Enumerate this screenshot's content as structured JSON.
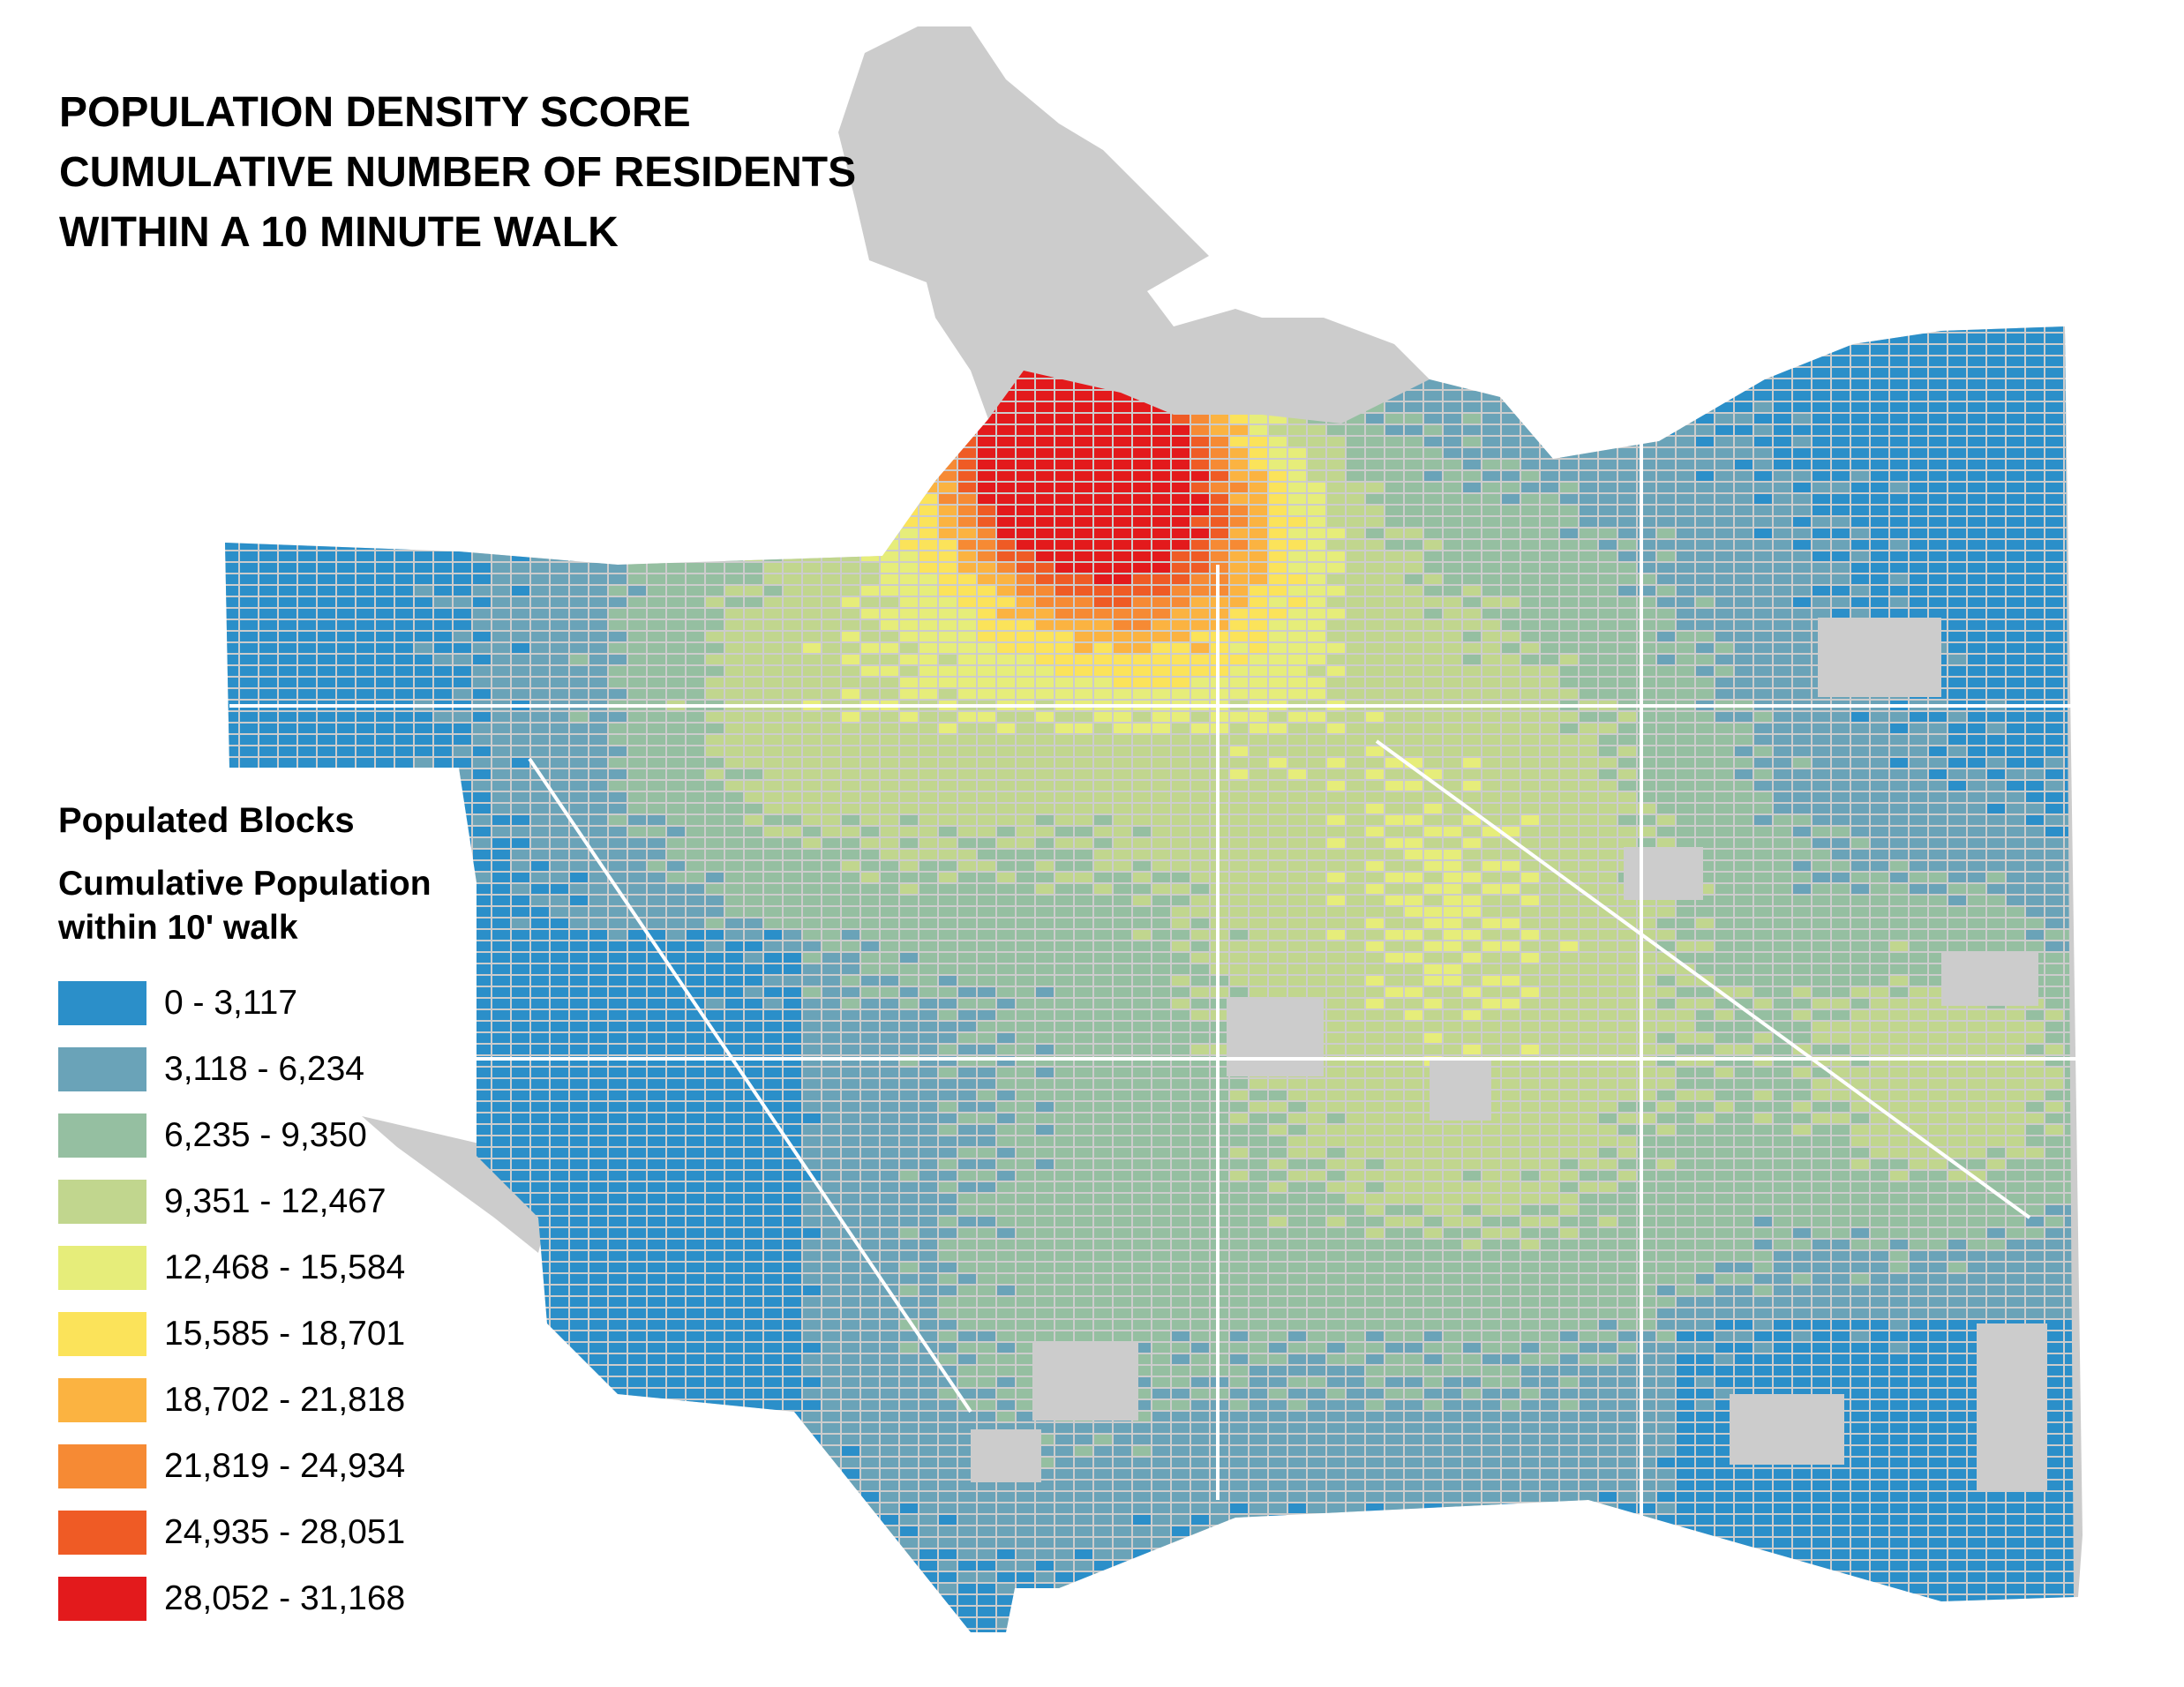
{
  "title": {
    "lines": [
      "POPULATION DENSITY SCORE",
      "CUMULATIVE NUMBER OF RESIDENTS",
      "WITHIN A 10 MINUTE WALK"
    ]
  },
  "legend": {
    "heading": "Populated Blocks",
    "subheading_line1": "Cumulative Population",
    "subheading_line2": "within 10' walk",
    "classes": [
      {
        "label": "0 - 3,117",
        "color": "#2b8fc9"
      },
      {
        "label": "3,118 - 6,234",
        "color": "#6aa3b8"
      },
      {
        "label": "6,235 - 9,350",
        "color": "#95bfa1"
      },
      {
        "label": "9,351 - 12,467",
        "color": "#c1d68e"
      },
      {
        "label": "12,468 - 15,584",
        "color": "#e6ed7a"
      },
      {
        "label": "15,585 - 18,701",
        "color": "#fbe35a"
      },
      {
        "label": "18,702 - 21,818",
        "color": "#fbb341"
      },
      {
        "label": "21,819 - 24,934",
        "color": "#f68a34"
      },
      {
        "label": "24,935 - 28,051",
        "color": "#ef5b25"
      },
      {
        "label": "28,052 - 31,168",
        "color": "#e31a1c"
      }
    ]
  },
  "map": {
    "background_land_color": "#cccccc",
    "street_color": "#ffffff"
  }
}
